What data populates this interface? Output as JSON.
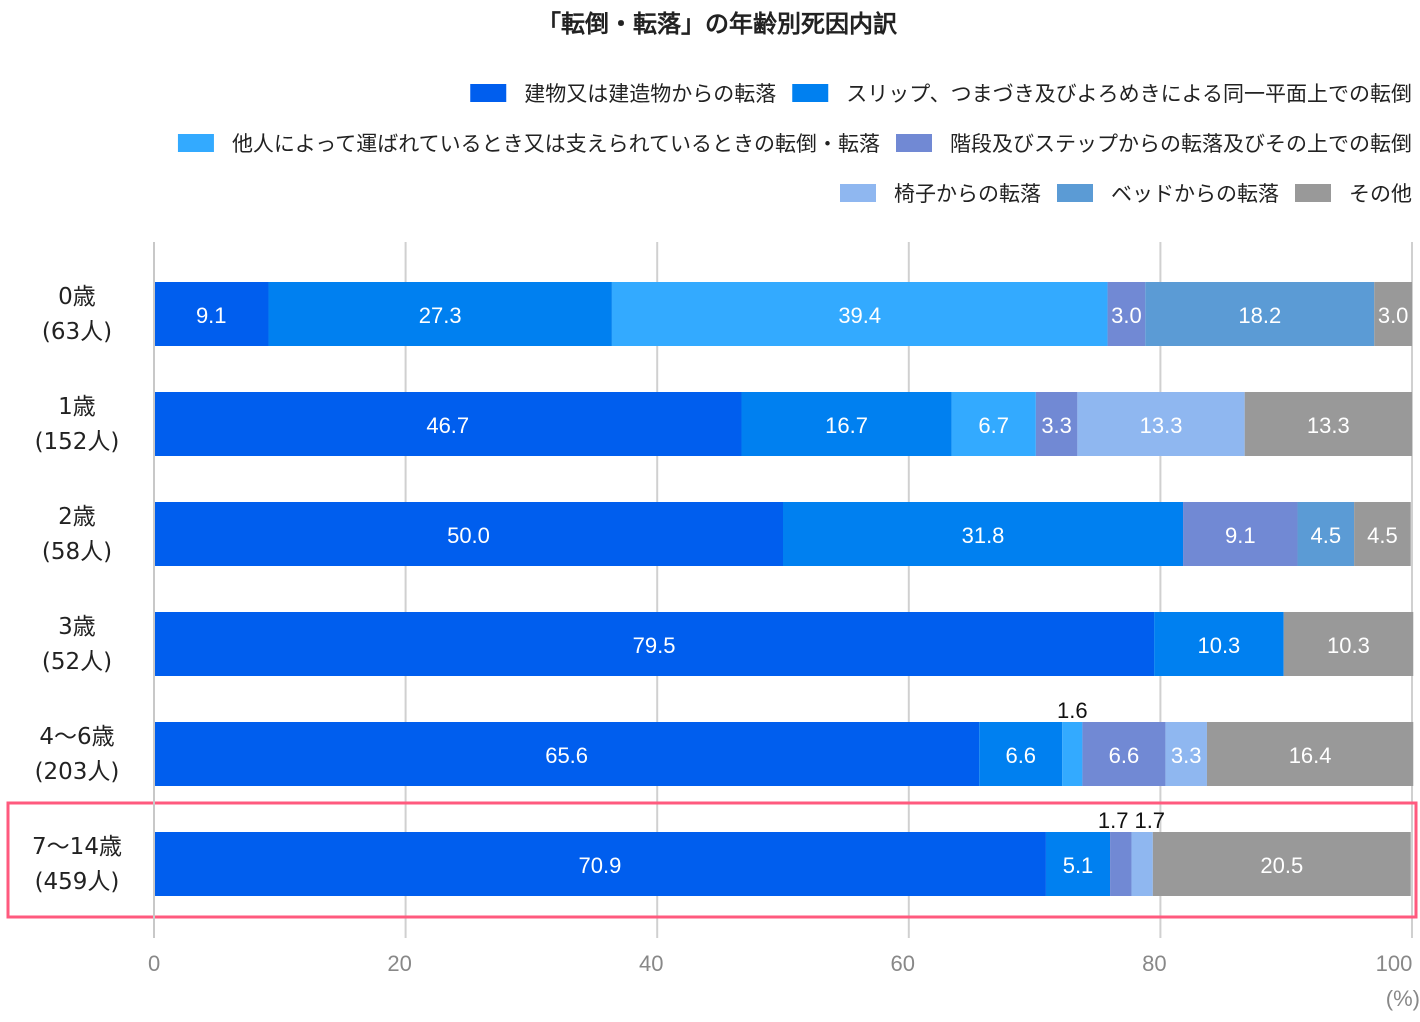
{
  "chart_data": {
    "type": "bar",
    "orientation": "horizontal-stacked",
    "title": "「転倒・転落」の年齢別死因内訳",
    "xlabel": "(%)",
    "xlim": [
      0,
      100
    ],
    "xticks": [
      "0",
      "20",
      "40",
      "60",
      "80",
      "100"
    ],
    "grid": true,
    "legend_position": "top-right",
    "categories": [
      {
        "age": "0歳",
        "count": "(63人)"
      },
      {
        "age": "1歳",
        "count": "(152人)"
      },
      {
        "age": "2歳",
        "count": "(58人)"
      },
      {
        "age": "3歳",
        "count": "(52人)"
      },
      {
        "age": "4〜6歳",
        "count": "(203人)"
      },
      {
        "age": "7〜14歳",
        "count": "(459人)"
      }
    ],
    "highlighted_category": "7〜14歳",
    "series": [
      {
        "name": "建物又は建造物からの転落",
        "color": "#005EEE",
        "values": [
          9.1,
          46.7,
          50.0,
          79.5,
          65.6,
          70.9
        ]
      },
      {
        "name": "スリップ、つまづき及びよろめきによる同一平面上での転倒",
        "color": "#0080F0",
        "values": [
          27.3,
          16.7,
          31.8,
          10.3,
          6.6,
          5.1
        ]
      },
      {
        "name": "他人によって運ばれているとき又は支えられているときの転倒・転落",
        "color": "#33AAFF",
        "values": [
          39.4,
          6.7,
          0,
          0,
          1.6,
          0
        ]
      },
      {
        "name": "階段及びステップからの転落及びその上での転倒",
        "color": "#7189D4",
        "values": [
          3.0,
          3.3,
          9.1,
          0,
          6.6,
          1.7
        ]
      },
      {
        "name": "椅子からの転落",
        "color": "#8FB7F0",
        "values": [
          0,
          13.3,
          0,
          0,
          3.3,
          1.7
        ]
      },
      {
        "name": "ベッドからの転落",
        "color": "#5B9BD5",
        "values": [
          18.2,
          0,
          4.5,
          0,
          0,
          0
        ]
      },
      {
        "name": "その他",
        "color": "#999999",
        "values": [
          3.0,
          13.3,
          4.5,
          10.3,
          16.4,
          20.5
        ]
      }
    ],
    "highlight_color": "#FF5A7E"
  }
}
